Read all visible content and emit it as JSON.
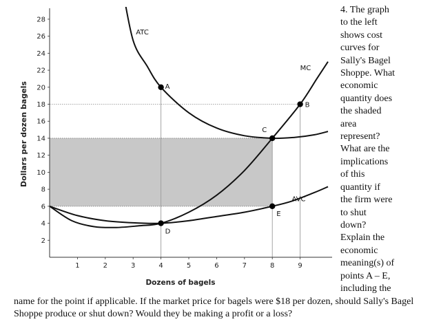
{
  "chart_data": {
    "type": "line",
    "xlabel": "Dozens of bagels",
    "ylabel": "Dollars per dozen bagels",
    "xlim": [
      0,
      10
    ],
    "ylim": [
      0,
      29
    ],
    "x_ticks": [
      "1",
      "2",
      "3",
      "4",
      "5",
      "6",
      "7",
      "8",
      "9"
    ],
    "y_ticks": [
      "2",
      "4",
      "6",
      "8",
      "10",
      "12",
      "14",
      "16",
      "18",
      "20",
      "22",
      "24",
      "26",
      "28"
    ],
    "series": [
      {
        "name": "ATC",
        "points": [
          [
            2.6,
            32
          ],
          [
            3,
            25.5
          ],
          [
            3.5,
            22.5
          ],
          [
            4,
            20
          ],
          [
            5,
            17
          ],
          [
            6,
            15.2
          ],
          [
            7,
            14.3
          ],
          [
            8,
            14
          ],
          [
            8.8,
            14.1
          ],
          [
            9.5,
            14.4
          ],
          [
            10,
            14.8
          ]
        ]
      },
      {
        "name": "MC",
        "points": [
          [
            0,
            6
          ],
          [
            0.8,
            4.3
          ],
          [
            1.6,
            3.6
          ],
          [
            2.4,
            3.5
          ],
          [
            3.2,
            3.7
          ],
          [
            4,
            4
          ],
          [
            5,
            5.3
          ],
          [
            6,
            7.3
          ],
          [
            7,
            10.2
          ],
          [
            8,
            14
          ],
          [
            9,
            18
          ],
          [
            9.6,
            21
          ],
          [
            10,
            23
          ]
        ]
      },
      {
        "name": "AVC",
        "points": [
          [
            0,
            6
          ],
          [
            1,
            4.9
          ],
          [
            2,
            4.3
          ],
          [
            3,
            4.05
          ],
          [
            4,
            4
          ],
          [
            5,
            4.3
          ],
          [
            6,
            4.8
          ],
          [
            7,
            5.3
          ],
          [
            8,
            6
          ],
          [
            8.7,
            6.6
          ],
          [
            9.5,
            7.6
          ],
          [
            10,
            8.3
          ]
        ]
      }
    ],
    "shaded_region": {
      "x": [
        0,
        8
      ],
      "y": [
        6,
        14
      ]
    },
    "points": [
      {
        "label": "A",
        "x": 4,
        "y": 20
      },
      {
        "label": "B",
        "x": 9,
        "y": 18
      },
      {
        "label": "C",
        "x": 8,
        "y": 14
      },
      {
        "label": "D",
        "x": 4,
        "y": 4
      },
      {
        "label": "E",
        "x": 8,
        "y": 6
      }
    ],
    "grid": false
  },
  "question": {
    "side_text": "4. The graph\nto the left\nshows cost\ncurves for\nSally's Bagel\nShoppe. What\neconomic\nquantity does\nthe shaded\narea\nrepresent?\nWhat are the\nimplications\nof this\nquantity if\nthe firm were\nto shut\ndown?\nExplain the\neconomic\nmeaning(s) of\npoints A – E,\nincluding the",
    "bottom_text": "name for the point if applicable. If the market price for bagels were $18 per dozen, should Sally's Bagel Shoppe produce or shut down? Would they be making a profit or a loss?"
  },
  "colors": {
    "shade": "#c8c8c8",
    "curve": "#111111",
    "guide": "#9a9a9a"
  }
}
